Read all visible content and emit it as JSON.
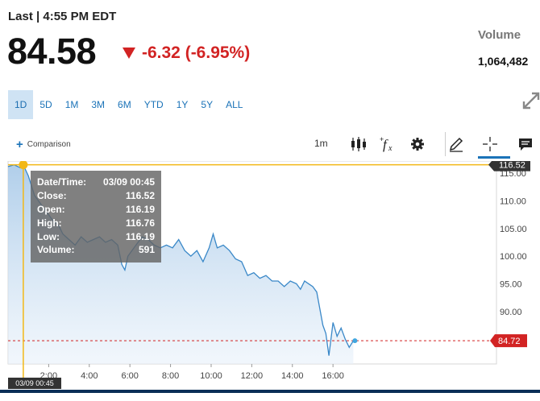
{
  "header": {
    "last_label": "Last | 4:55 PM EDT",
    "price": "84.58",
    "change": "-6.32 (-6.95%)",
    "volume_label": "Volume",
    "volume_value": "1,064,482"
  },
  "range_tabs": [
    "1D",
    "5D",
    "1M",
    "3M",
    "6M",
    "YTD",
    "1Y",
    "5Y",
    "ALL"
  ],
  "active_tab": "1D",
  "toolbar": {
    "comparison_label": "Comparison",
    "interval_label": "1m"
  },
  "tooltip": {
    "rows": [
      {
        "label": "Date/Time:",
        "value": "03/09 00:45"
      },
      {
        "label": "Close:",
        "value": "116.52"
      },
      {
        "label": "Open:",
        "value": "116.19"
      },
      {
        "label": "High:",
        "value": "116.76"
      },
      {
        "label": "Low:",
        "value": "116.19"
      },
      {
        "label": "Volume:",
        "value": "591"
      }
    ]
  },
  "crosshair_date": "03/09 00:45",
  "colors": {
    "accent": "#1b73b8",
    "down": "#d22323",
    "crosshair": "#f2b817",
    "line": "#3a88c8"
  },
  "chart_data": {
    "type": "area",
    "x_ticks": [
      "2:00",
      "4:00",
      "6:00",
      "8:00",
      "10:00",
      "12:00",
      "14:00",
      "16:00"
    ],
    "x_tick_hours": [
      2,
      4,
      6,
      8,
      10,
      12,
      14,
      16
    ],
    "y_ticks": [
      "90.00",
      "95.00",
      "100.00",
      "105.00",
      "110.00",
      "115.00"
    ],
    "y_tick_values": [
      90,
      95,
      100,
      105,
      110,
      115
    ],
    "ylim": [
      80.5,
      117.2
    ],
    "xlim": [
      0,
      24.05
    ],
    "crosshair_price": "116.52",
    "last_price_label": "84.72",
    "grid": false,
    "series": [
      {
        "x": [
          0,
          0.3,
          0.6,
          0.75,
          1.0,
          1.3,
          1.6,
          1.9,
          2.2,
          2.5,
          2.7,
          3.0,
          3.3,
          3.6,
          3.9,
          4.2,
          4.5,
          4.8,
          5.1,
          5.4,
          5.6,
          5.75,
          5.9,
          6.1,
          6.3,
          6.6,
          6.9,
          7.2,
          7.5,
          7.8,
          8.1,
          8.4,
          8.7,
          9.0,
          9.3,
          9.6,
          9.9,
          10.1,
          10.3,
          10.6,
          10.9,
          11.2,
          11.5,
          11.8,
          12.1,
          12.4,
          12.7,
          13.0,
          13.3,
          13.6,
          13.9,
          14.2,
          14.4,
          14.6,
          14.8,
          15.0,
          15.2,
          15.35,
          15.5,
          15.65,
          15.8,
          16.0,
          16.2,
          16.4,
          16.6,
          16.8,
          17.0
        ],
        "y": [
          116.2,
          116.5,
          116.0,
          116.5,
          114.5,
          111.0,
          109.5,
          108.0,
          106.5,
          105.5,
          104.0,
          103.0,
          102.0,
          103.5,
          102.5,
          103.0,
          103.5,
          102.5,
          103.0,
          102.0,
          98.5,
          97.5,
          100.0,
          101.0,
          102.0,
          103.5,
          103.0,
          102.0,
          101.5,
          102.0,
          101.5,
          103.0,
          101.0,
          100.0,
          101.0,
          99.0,
          101.5,
          104.0,
          101.5,
          102.0,
          101.0,
          99.5,
          99.0,
          96.5,
          97.0,
          96.0,
          96.5,
          95.5,
          95.5,
          94.5,
          95.5,
          95.0,
          94.0,
          95.5,
          95.0,
          94.5,
          93.5,
          90.5,
          87.5,
          86.0,
          82.0,
          88.0,
          85.5,
          87.0,
          85.0,
          83.5,
          84.7
        ]
      }
    ]
  }
}
